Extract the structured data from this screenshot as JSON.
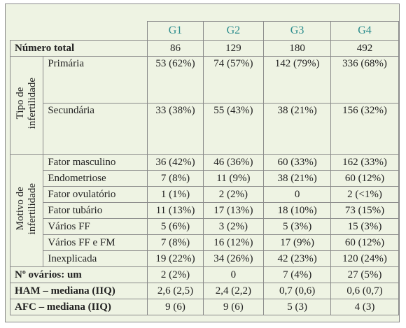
{
  "table": {
    "columns": [
      "G1",
      "G2",
      "G3",
      "G4"
    ],
    "total": {
      "label": "Número total",
      "cells": [
        "86",
        "129",
        "180",
        "492"
      ]
    },
    "groups": [
      {
        "label": [
          "Tipo de",
          "infertilidade"
        ],
        "rows": [
          {
            "label": "Primária",
            "cells": [
              "53 (62%)",
              "74 (57%)",
              "142 (79%)",
              "336 (68%)"
            ]
          },
          {
            "label": "Secundária",
            "cells": [
              "33 (38%)",
              "55 (43%)",
              "38 (21%)",
              "156 (32%)"
            ]
          }
        ]
      },
      {
        "label": [
          "Motivo de",
          "infertilidade"
        ],
        "rows": [
          {
            "label": "Fator masculino",
            "cells": [
              "36 (42%)",
              "46 (36%)",
              "60 (33%)",
              "162 (33%)"
            ]
          },
          {
            "label": "Endometriose",
            "cells": [
              "7 (8%)",
              "11 (9%)",
              "38 (21%)",
              "60 (12%)"
            ]
          },
          {
            "label": "Fator ovulatório",
            "cells": [
              "1 (1%)",
              "2 (2%)",
              "0",
              "2 (<1%)"
            ]
          },
          {
            "label": "Fator tubário",
            "cells": [
              "11 (13%)",
              "17 (13%)",
              "18 (10%)",
              "73 (15%)"
            ]
          },
          {
            "label": "Vários FF",
            "cells": [
              "5 (6%)",
              "3 (2%)",
              "5 (3%)",
              "15 (3%)"
            ]
          },
          {
            "label": "Vários FF e FM",
            "cells": [
              "7 (8%)",
              "16 (12%)",
              "17 (9%)",
              "60 (12%)"
            ]
          },
          {
            "label": "Inexplicada",
            "cells": [
              "19 (22%)",
              "34 (26%)",
              "42 (23%)",
              "120 (24%)"
            ]
          }
        ]
      }
    ],
    "footer_rows": [
      {
        "label": "Nº ovários: um",
        "cells": [
          "2 (2%)",
          "0",
          "7 (4%)",
          "27 (5%)"
        ]
      },
      {
        "label": "HAM – mediana (IIQ)",
        "cells": [
          "2,6 (2,5)",
          "2,4 (2,2)",
          "0,7 (0,6)",
          "0,6 (0,7)"
        ]
      },
      {
        "label": "AFC – mediana (IIQ)",
        "cells": [
          "9 (6)",
          "9 (6)",
          "5 (3)",
          "4 (3)"
        ]
      }
    ]
  }
}
